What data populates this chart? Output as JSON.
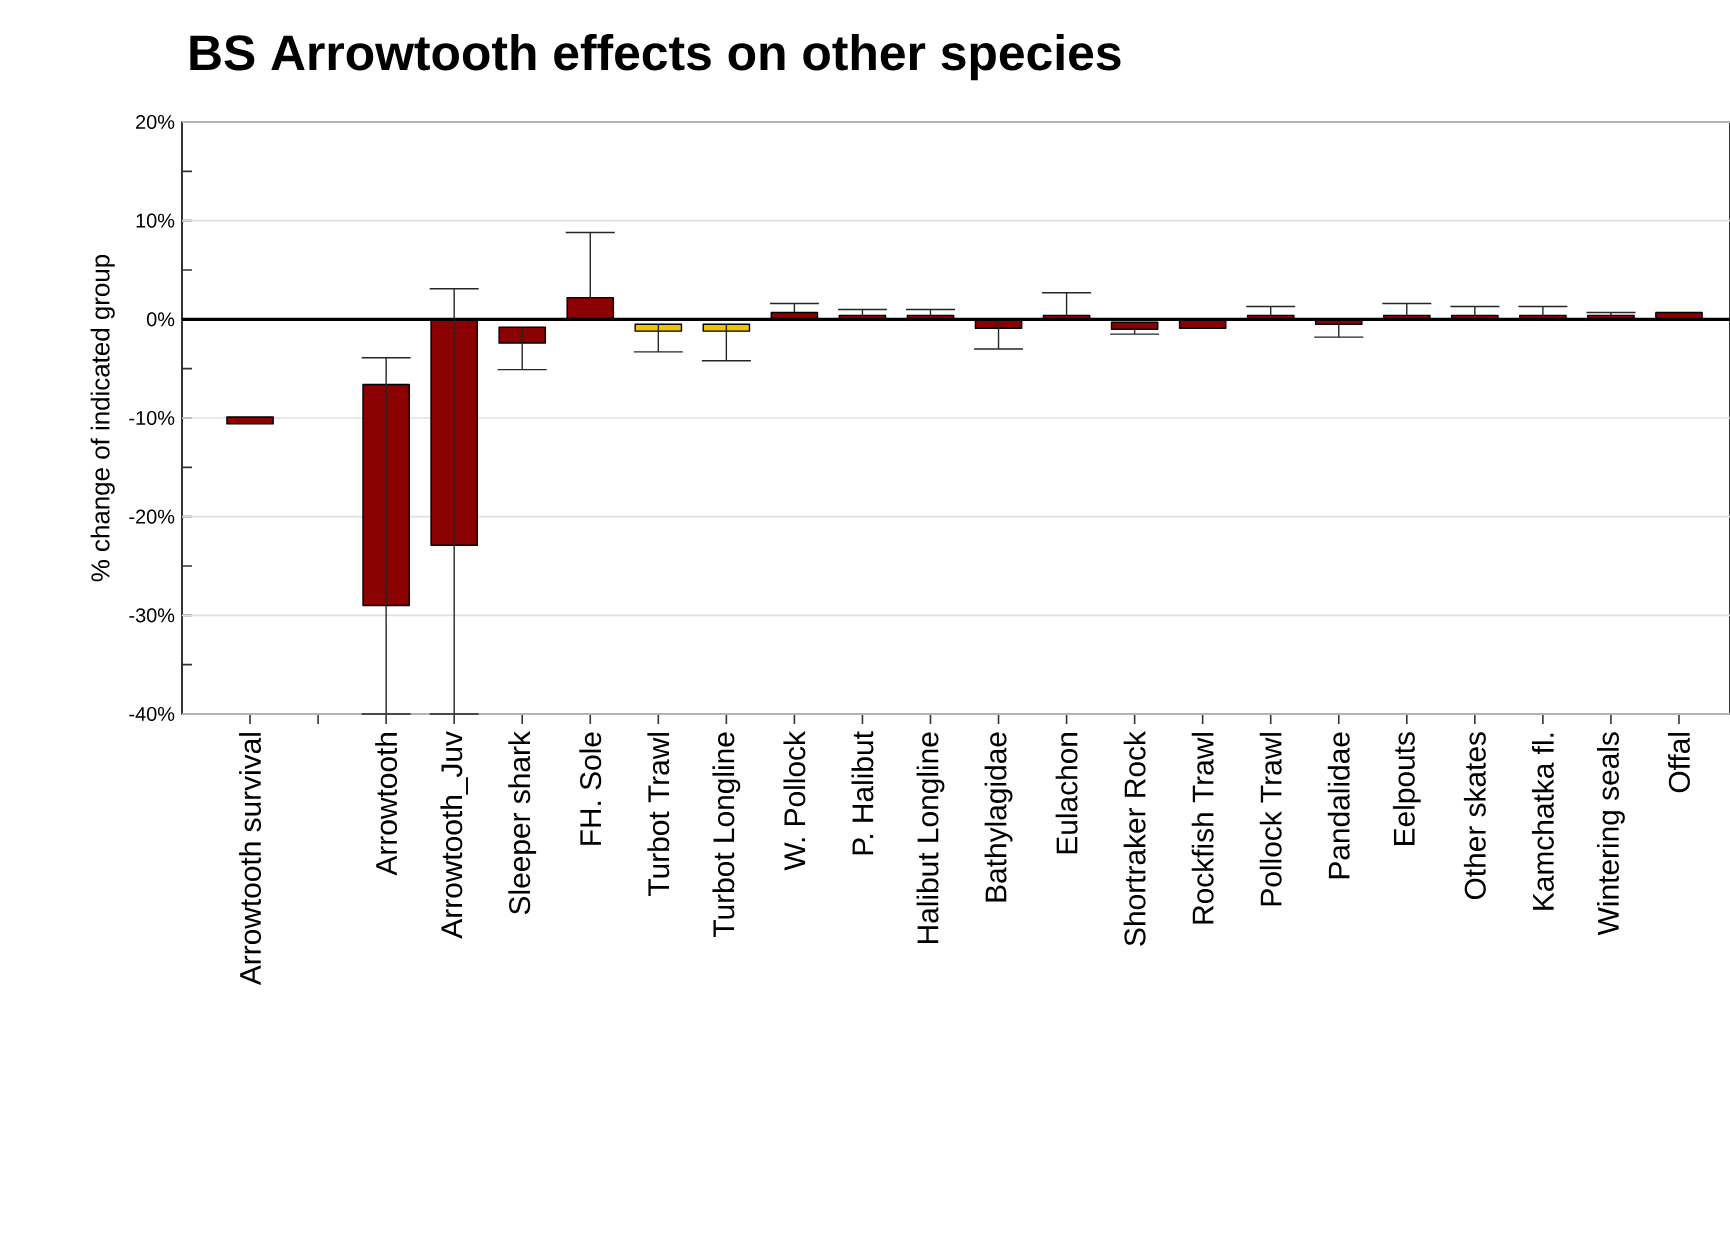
{
  "chart_data": {
    "type": "bar",
    "title": "BS Arrowtooth effects on other species",
    "ylabel": "% change of indicated group",
    "categories": [
      "Arrowtooth survival",
      null,
      "Arrowtooth",
      "Arrowtooth_Juv",
      "Sleeper shark",
      "FH. Sole",
      "Turbot Trawl",
      "Turbot Longline",
      "W. Pollock",
      "P. Halibut",
      "Halibut Longline",
      "Bathylagidae",
      "Eulachon",
      "Shortraker Rock",
      "Rockfish Trawl",
      "Pollock Trawl",
      "Pandalidae",
      "Eelpouts",
      "Other skates",
      "Kamchatka fl.",
      "Wintering seals",
      "Offal"
    ],
    "base": [
      -10.6,
      null,
      -29.0,
      -22.9,
      -2.4,
      0,
      -1.2,
      -1.2,
      0,
      0,
      0,
      -0.9,
      0,
      -1.0,
      -0.9,
      0,
      -0.5,
      0,
      0,
      0,
      0,
      0
    ],
    "values": [
      0.7,
      null,
      22.4,
      22.8,
      1.6,
      2.2,
      0.7,
      0.7,
      0.7,
      0.4,
      0.4,
      0.8,
      0.4,
      0.7,
      0.9,
      0.4,
      0.5,
      0.4,
      0.4,
      0.4,
      0.4,
      0.7
    ],
    "errors": [
      null,
      null,
      [
        -40,
        -3.9
      ],
      [
        -40,
        3.1
      ],
      [
        -5.1,
        -0.8
      ],
      [
        2.2,
        8.8
      ],
      [
        -3.3,
        -0.5
      ],
      [
        -4.2,
        -0.5
      ],
      [
        0.7,
        1.6
      ],
      [
        0.4,
        1.0
      ],
      [
        0.4,
        1.0
      ],
      [
        -3.0,
        -0.1
      ],
      [
        0.4,
        2.7
      ],
      [
        -1.5,
        -1.0
      ],
      null,
      [
        0.4,
        1.3
      ],
      [
        -1.8,
        -0.5
      ],
      [
        0.4,
        1.6
      ],
      [
        0.4,
        1.3
      ],
      [
        0.4,
        1.3
      ],
      [
        0.4,
        0.7
      ],
      null
    ],
    "colors": [
      "#8b0000",
      "#8b0000",
      "#8b0000",
      "#8b0000",
      "#8b0000",
      "#8b0000",
      "#f0c400",
      "#f0c400",
      "#8b0000",
      "#8b0000",
      "#8b0000",
      "#8b0000",
      "#8b0000",
      "#8b0000",
      "#8b0000",
      "#8b0000",
      "#8b0000",
      "#8b0000",
      "#8b0000",
      "#8b0000",
      "#8b0000",
      "#8b0000"
    ],
    "ylim": [
      -40,
      20
    ],
    "yticks": [
      {
        "value": -40,
        "label": "-40%"
      },
      {
        "value": -35,
        "label": null
      },
      {
        "value": -30,
        "label": "-30%"
      },
      {
        "value": -25,
        "label": null
      },
      {
        "value": -20,
        "label": "-20%"
      },
      {
        "value": -15,
        "label": null
      },
      {
        "value": -10,
        "label": "-10%"
      },
      {
        "value": -5,
        "label": null
      },
      {
        "value": 0,
        "label": "0%"
      },
      {
        "value": 5,
        "label": null
      },
      {
        "value": 10,
        "label": "10%"
      },
      {
        "value": 15,
        "label": null
      },
      {
        "value": 20,
        "label": "20%"
      }
    ],
    "ref_lines": [
      {
        "axis": "y",
        "value": 0,
        "color": "#000000"
      }
    ],
    "grid": "y"
  }
}
